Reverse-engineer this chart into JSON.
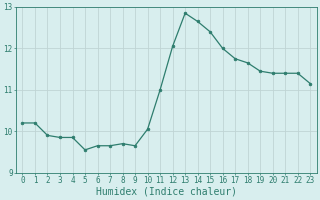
{
  "x": [
    0,
    1,
    2,
    3,
    4,
    5,
    6,
    7,
    8,
    9,
    10,
    11,
    12,
    13,
    14,
    15,
    16,
    17,
    18,
    19,
    20,
    21,
    22,
    23
  ],
  "y": [
    10.2,
    10.2,
    9.9,
    9.85,
    9.85,
    9.55,
    9.65,
    9.65,
    9.7,
    9.65,
    10.05,
    11.0,
    12.05,
    12.85,
    12.65,
    12.4,
    12.0,
    11.75,
    11.65,
    11.45,
    11.4,
    11.4,
    11.4,
    11.15
  ],
  "line_color": "#2e7d6e",
  "marker": "o",
  "marker_size": 2.0,
  "bg_color": "#d8eeee",
  "grid_color": "#c0d4d4",
  "axis_color": "#2e7d6e",
  "xlabel": "Humidex (Indice chaleur)",
  "ylim": [
    9.0,
    13.0
  ],
  "xlim_min": -0.5,
  "xlim_max": 23.5,
  "yticks": [
    9,
    10,
    11,
    12,
    13
  ],
  "xtick_labels": [
    "0",
    "1",
    "2",
    "3",
    "4",
    "5",
    "6",
    "7",
    "8",
    "9",
    "10",
    "11",
    "12",
    "13",
    "14",
    "15",
    "16",
    "17",
    "18",
    "19",
    "20",
    "21",
    "22",
    "23"
  ],
  "tick_fontsize": 5.5,
  "label_fontsize": 7.0,
  "linewidth": 0.9
}
